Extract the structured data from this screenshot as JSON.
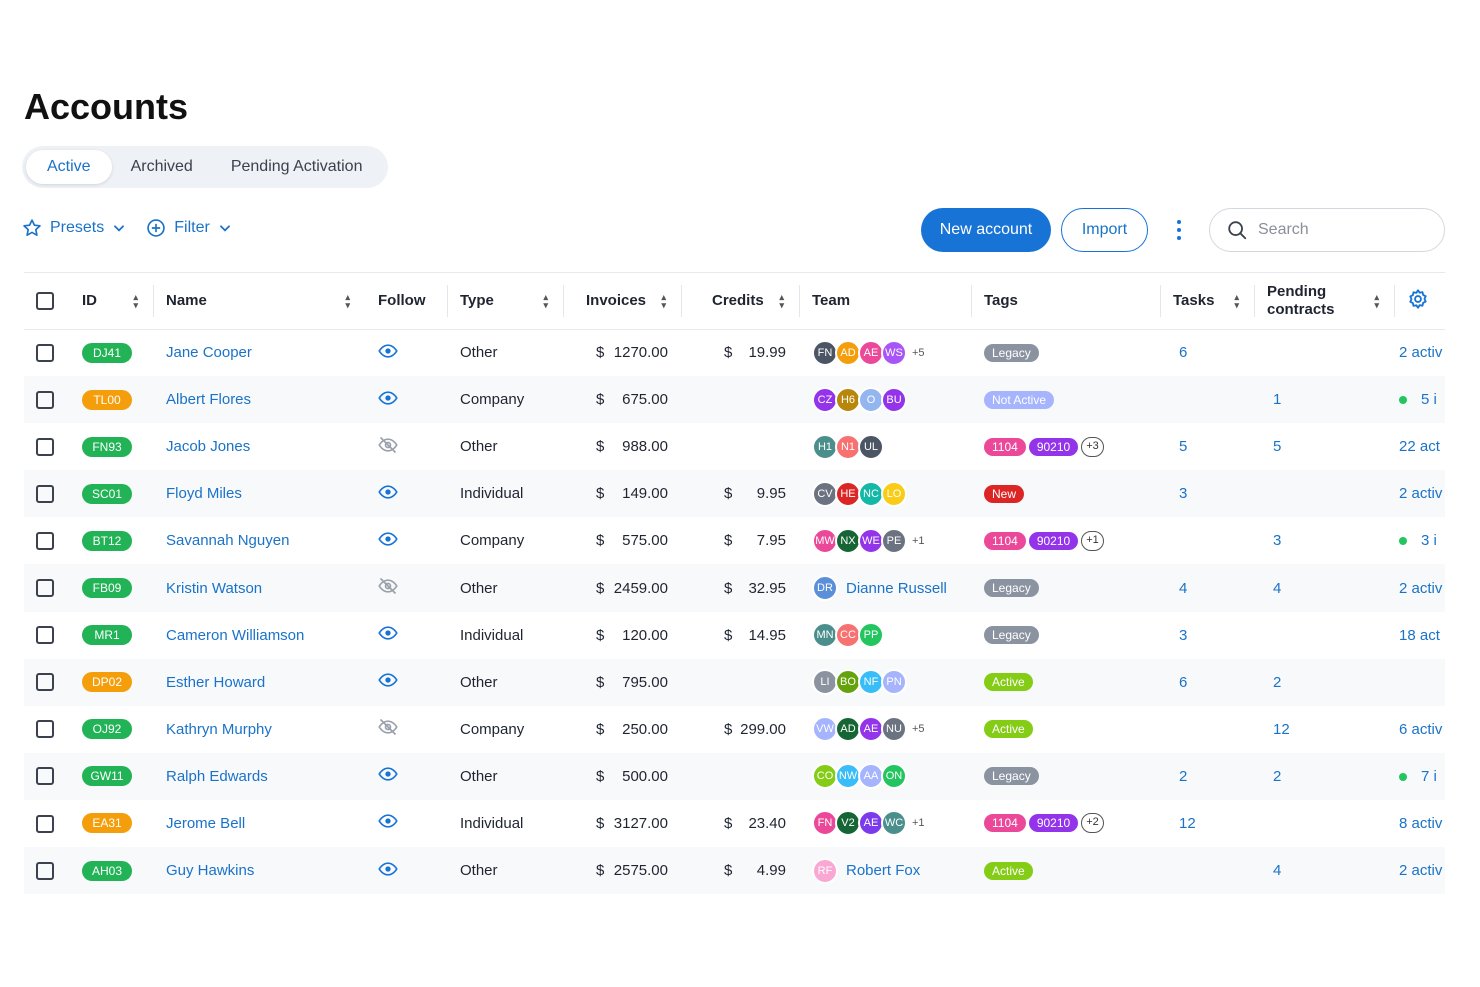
{
  "page": {
    "title": "Accounts"
  },
  "tabs": [
    {
      "label": "Active",
      "active": true
    },
    {
      "label": "Archived"
    },
    {
      "label": "Pending Activation"
    }
  ],
  "toolbar": {
    "presets": "Presets",
    "filter": "Filter",
    "new_account": "New account",
    "import": "Import",
    "search_placeholder": "Search"
  },
  "columns": {
    "id": "ID",
    "name": "Name",
    "follow": "Follow",
    "type": "Type",
    "invoices": "Invoices",
    "credits": "Credits",
    "team": "Team",
    "tags": "Tags",
    "tasks": "Tasks",
    "pending_1": "Pending",
    "pending_2": "contracts"
  },
  "rows": [
    {
      "id": "DJ41",
      "id_color": "#22b357",
      "name": "Jane Cooper",
      "follow": true,
      "type": "Other",
      "invoice": "1270.00",
      "credit": "19.99",
      "team": [
        [
          "FN",
          "#4b5563"
        ],
        [
          "AD",
          "#f59e0b"
        ],
        [
          "AE",
          "#ec4899"
        ],
        [
          "WS",
          "#a855f7"
        ]
      ],
      "team_more": "+5",
      "tags": [
        [
          "Legacy",
          "#8b93a1"
        ]
      ],
      "tag_more": "",
      "tasks": "6",
      "pending": "",
      "extra": "2 activ",
      "extra_dot": false
    },
    {
      "id": "TL00",
      "id_color": "#f59e0b",
      "name": "Albert Flores",
      "follow": true,
      "type": "Company",
      "invoice": "675.00",
      "credit": "",
      "team": [
        [
          "CZ",
          "#9333ea"
        ],
        [
          "H6",
          "#b8860b"
        ],
        [
          "O",
          "#93b5f0"
        ],
        [
          "BU",
          "#9333ea"
        ]
      ],
      "team_more": "",
      "tags": [
        [
          "Not Active",
          "#a5b4fc"
        ]
      ],
      "tag_more": "",
      "tasks": "",
      "pending": "1",
      "extra": "5 i",
      "extra_dot": true
    },
    {
      "id": "FN93",
      "id_color": "#22b357",
      "name": "Jacob Jones",
      "follow": false,
      "type": "Other",
      "invoice": "988.00",
      "credit": "",
      "team": [
        [
          "H1",
          "#4b8f8c"
        ],
        [
          "N1",
          "#f87171"
        ],
        [
          "UL",
          "#4b5563"
        ]
      ],
      "team_more": "",
      "tags": [
        [
          "1104",
          "#ec4899"
        ],
        [
          "90210",
          "#9333ea"
        ]
      ],
      "tag_more": "+3",
      "tasks": "5",
      "pending": "5",
      "extra": "22 act",
      "extra_dot": false
    },
    {
      "id": "SC01",
      "id_color": "#22b357",
      "name": "Floyd Miles",
      "follow": true,
      "type": "Individual",
      "invoice": "149.00",
      "credit": "9.95",
      "team": [
        [
          "CV",
          "#6b7280"
        ],
        [
          "HE",
          "#dc2626"
        ],
        [
          "NC",
          "#14b8a6"
        ],
        [
          "LO",
          "#facc15"
        ]
      ],
      "team_more": "",
      "tags": [
        [
          "New",
          "#dc2626"
        ]
      ],
      "tag_more": "",
      "tasks": "3",
      "pending": "",
      "extra": "2 activ",
      "extra_dot": false
    },
    {
      "id": "BT12",
      "id_color": "#22b357",
      "name": "Savannah Nguyen",
      "follow": true,
      "type": "Company",
      "invoice": "575.00",
      "credit": "7.95",
      "team": [
        [
          "MW",
          "#ec4899"
        ],
        [
          "NX",
          "#166534"
        ],
        [
          "WE",
          "#9333ea"
        ],
        [
          "PE",
          "#6b7280"
        ]
      ],
      "team_more": "+1",
      "tags": [
        [
          "1104",
          "#ec4899"
        ],
        [
          "90210",
          "#9333ea"
        ]
      ],
      "tag_more": "+1",
      "tasks": "",
      "pending": "3",
      "extra": "3 i",
      "extra_dot": true
    },
    {
      "id": "FB09",
      "id_color": "#22b357",
      "name": "Kristin Watson",
      "follow": false,
      "type": "Other",
      "invoice": "2459.00",
      "credit": "32.95",
      "team": [
        [
          "DR",
          "#5b8fd9"
        ]
      ],
      "team_name": "Dianne Russell",
      "team_more": "",
      "tags": [
        [
          "Legacy",
          "#8b93a1"
        ]
      ],
      "tag_more": "",
      "tasks": "4",
      "pending": "4",
      "extra": "2 activ",
      "extra_dot": false
    },
    {
      "id": "MR1",
      "id_color": "#22b357",
      "name": "Cameron Williamson",
      "follow": true,
      "type": "Individual",
      "invoice": "120.00",
      "credit": "14.95",
      "team": [
        [
          "MN",
          "#4b8f8c"
        ],
        [
          "CC",
          "#f87171"
        ],
        [
          "PP",
          "#22c55e"
        ]
      ],
      "team_more": "",
      "tags": [
        [
          "Legacy",
          "#8b93a1"
        ]
      ],
      "tag_more": "",
      "tasks": "3",
      "pending": "",
      "extra": "18 act",
      "extra_dot": false
    },
    {
      "id": "DP02",
      "id_color": "#f59e0b",
      "name": "Esther Howard",
      "follow": true,
      "type": "Other",
      "invoice": "795.00",
      "credit": "",
      "team": [
        [
          "LI",
          "#8b93a1"
        ],
        [
          "BO",
          "#65a30d"
        ],
        [
          "NF",
          "#38bdf8"
        ],
        [
          "PN",
          "#a5b4fc"
        ]
      ],
      "team_more": "",
      "tags": [
        [
          "Active",
          "#84cc16"
        ]
      ],
      "tag_more": "",
      "tasks": "6",
      "pending": "2",
      "extra": "",
      "extra_dot": false
    },
    {
      "id": "OJ92",
      "id_color": "#22b357",
      "name": "Kathryn Murphy",
      "follow": false,
      "type": "Company",
      "invoice": "250.00",
      "credit": "299.00",
      "team": [
        [
          "VW",
          "#a5b4fc"
        ],
        [
          "AD",
          "#166534"
        ],
        [
          "AE",
          "#9333ea"
        ],
        [
          "NU",
          "#6b7280"
        ]
      ],
      "team_more": "+5",
      "tags": [
        [
          "Active",
          "#84cc16"
        ]
      ],
      "tag_more": "",
      "tasks": "",
      "pending": "12",
      "extra": "6 activ",
      "extra_dot": false
    },
    {
      "id": "GW11",
      "id_color": "#22b357",
      "name": "Ralph Edwards",
      "follow": true,
      "type": "Other",
      "invoice": "500.00",
      "credit": "",
      "team": [
        [
          "CO",
          "#84cc16"
        ],
        [
          "NW",
          "#38bdf8"
        ],
        [
          "AA",
          "#a5b4fc"
        ],
        [
          "ON",
          "#22c55e"
        ]
      ],
      "team_more": "",
      "tags": [
        [
          "Legacy",
          "#8b93a1"
        ]
      ],
      "tag_more": "",
      "tasks": "2",
      "pending": "2",
      "extra": "7 i",
      "extra_dot": true
    },
    {
      "id": "EA31",
      "id_color": "#f59e0b",
      "name": "Jerome Bell",
      "follow": true,
      "type": "Individual",
      "invoice": "3127.00",
      "credit": "23.40",
      "team": [
        [
          "FN",
          "#ec4899"
        ],
        [
          "V2",
          "#166534"
        ],
        [
          "AE",
          "#7c3aed"
        ],
        [
          "WC",
          "#4b8f8c"
        ]
      ],
      "team_more": "+1",
      "tags": [
        [
          "1104",
          "#ec4899"
        ],
        [
          "90210",
          "#9333ea"
        ]
      ],
      "tag_more": "+2",
      "tasks": "12",
      "pending": "",
      "extra": "8 activ",
      "extra_dot": false
    },
    {
      "id": "AH03",
      "id_color": "#22b357",
      "name": "Guy Hawkins",
      "follow": true,
      "type": "Other",
      "invoice": "2575.00",
      "credit": "4.99",
      "team": [
        [
          "RF",
          "#f9a8d4"
        ]
      ],
      "team_name": "Robert Fox",
      "team_more": "",
      "tags": [
        [
          "Active",
          "#84cc16"
        ]
      ],
      "tag_more": "",
      "tasks": "",
      "pending": "4",
      "extra": "2 activ",
      "extra_dot": false
    }
  ],
  "currency": "$"
}
